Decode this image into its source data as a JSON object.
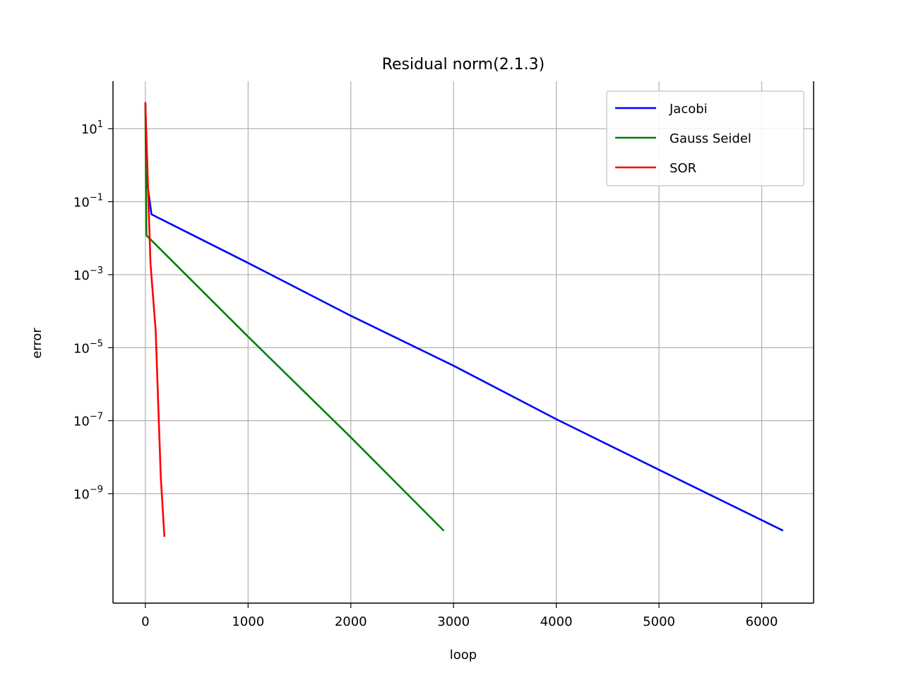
{
  "chart_data": {
    "type": "line",
    "title": "Residual norm(2.1.3)",
    "xlabel": "loop",
    "ylabel": "error",
    "xlim": [
      -315,
      6505
    ],
    "ylim": [
      1e-12,
      200
    ],
    "yscale": "log",
    "grid": true,
    "legend_position": "top-right",
    "x_ticks": [
      0,
      1000,
      2000,
      3000,
      4000,
      5000,
      6000
    ],
    "x_tick_labels": [
      "0",
      "1000",
      "2000",
      "3000",
      "4000",
      "5000",
      "6000"
    ],
    "y_ticks": [
      10,
      0.1,
      0.001,
      1e-05,
      1e-07,
      1e-09
    ],
    "y_tick_labels": [
      {
        "base": "10",
        "exp": "1"
      },
      {
        "base": "10",
        "exp": "−1"
      },
      {
        "base": "10",
        "exp": "−3"
      },
      {
        "base": "10",
        "exp": "−5"
      },
      {
        "base": "10",
        "exp": "−7"
      },
      {
        "base": "10",
        "exp": "−9"
      }
    ],
    "series": [
      {
        "name": "Jacobi",
        "color": "#0000ff",
        "x": [
          0,
          20,
          60,
          1000,
          2000,
          3000,
          4000,
          5000,
          6200
        ],
        "y": [
          50,
          0.3,
          0.045,
          0.0021,
          7.5e-05,
          3.2e-06,
          1.1e-07,
          4.5e-09,
          1e-10
        ]
      },
      {
        "name": "Gauss Seidel",
        "color": "#008000",
        "x": [
          0,
          10,
          1000,
          2000,
          2900
        ],
        "y": [
          50,
          0.012,
          2e-05,
          3.5e-08,
          1e-10
        ]
      },
      {
        "name": "SOR",
        "color": "#ff0000",
        "x": [
          0,
          50,
          100,
          150,
          185
        ],
        "y": [
          50,
          0.002,
          3e-05,
          3e-09,
          7e-11
        ]
      }
    ]
  }
}
